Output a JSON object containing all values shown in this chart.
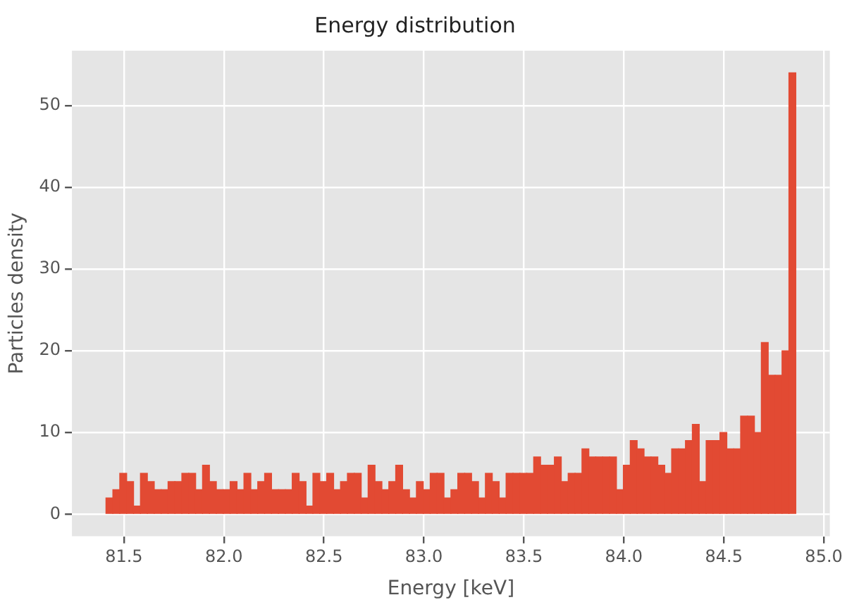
{
  "chart_data": {
    "type": "histogram",
    "title": "Energy distribution",
    "xlabel": "Energy [keV]",
    "ylabel": "Particles density",
    "bins": [
      81.41,
      81.4445,
      81.479,
      81.5135,
      81.548,
      81.5825,
      81.617,
      81.6515,
      81.686,
      81.7205,
      81.755,
      81.7895,
      81.824,
      81.8585,
      81.893,
      81.9275,
      81.962,
      81.9965,
      82.031,
      82.0655,
      82.1,
      82.1345,
      82.169,
      82.2035,
      82.238,
      82.2725,
      82.307,
      82.3415,
      82.376,
      82.4105,
      82.445,
      82.4795,
      82.514,
      82.5485,
      82.583,
      82.6175,
      82.652,
      82.6865,
      82.721,
      82.7555,
      82.79,
      82.8245,
      82.859,
      82.8935,
      82.928,
      82.9625,
      82.997,
      83.0315,
      83.066,
      83.1005,
      83.135,
      83.1695,
      83.204,
      83.2385,
      83.273,
      83.3075,
      83.342,
      83.3765,
      83.411,
      83.4455,
      83.48,
      83.5145,
      83.549,
      83.5835,
      83.618,
      83.6525,
      83.687,
      83.7215,
      83.756,
      83.7905,
      83.825,
      83.8595,
      83.894,
      83.9285,
      83.963,
      83.9975,
      84.032,
      84.0665,
      84.101,
      84.1355,
      84.17,
      84.2045,
      84.239,
      84.2735,
      84.308,
      84.3425,
      84.377,
      84.4115,
      84.446,
      84.4805,
      84.515,
      84.5495,
      84.584,
      84.6185,
      84.653,
      84.6875,
      84.722,
      84.7565,
      84.791,
      84.8255,
      84.86
    ],
    "values": [
      2,
      3,
      5,
      4,
      1,
      5,
      4,
      3,
      3,
      4,
      4,
      5,
      5,
      3,
      6,
      4,
      3,
      3,
      4,
      3,
      5,
      3,
      4,
      5,
      3,
      3,
      3,
      5,
      4,
      1,
      5,
      4,
      5,
      3,
      4,
      5,
      5,
      2,
      6,
      4,
      3,
      4,
      6,
      3,
      2,
      4,
      3,
      5,
      5,
      2,
      3,
      5,
      5,
      4,
      2,
      5,
      4,
      2,
      5,
      5,
      5,
      5,
      7,
      6,
      6,
      7,
      4,
      5,
      5,
      8,
      7,
      7,
      7,
      7,
      3,
      6,
      9,
      8,
      7,
      7,
      6,
      5,
      8,
      8,
      9,
      11,
      4,
      9,
      9,
      10,
      8,
      8,
      12,
      12,
      10,
      21,
      17,
      17,
      20,
      54
    ],
    "color": "#e24a33",
    "xlim": [
      81.24,
      85.03
    ],
    "ylim": [
      -2.7,
      56.7
    ],
    "xticks": [
      {
        "value": 81.5,
        "label": "81.5"
      },
      {
        "value": 82,
        "label": "82.0"
      },
      {
        "value": 82.5,
        "label": "82.5"
      },
      {
        "value": 83,
        "label": "83.0"
      },
      {
        "value": 83.5,
        "label": "83.5"
      },
      {
        "value": 84,
        "label": "84.0"
      },
      {
        "value": 84.5,
        "label": "84.5"
      },
      {
        "value": 85,
        "label": "85.0"
      }
    ],
    "yticks": [
      0,
      10,
      20,
      30,
      40,
      50
    ],
    "grid": true
  }
}
